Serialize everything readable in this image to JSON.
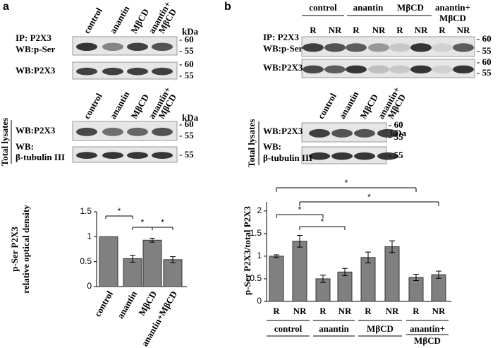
{
  "chart_data": [
    {
      "type": "bar",
      "ylabel": [
        "p-Ser P2X3",
        "relative optical density"
      ],
      "categories": [
        "control",
        "anantin",
        "MβCD",
        "anantin+MβCD"
      ],
      "values": [
        1,
        0.56,
        0.93,
        0.54
      ],
      "errors": [
        0,
        0.07,
        0.04,
        0.06
      ],
      "color": "#808080",
      "ylim": [
        0,
        1.5
      ],
      "yticks": [
        0,
        0.5,
        1,
        1.5
      ],
      "annotations": [
        "*",
        "*",
        "*"
      ]
    },
    {
      "type": "grouped-bar",
      "ylabel": "p-Ser P2X3/total P2X3",
      "categories": [
        "R",
        "NR",
        "R",
        "NR",
        "R",
        "NR",
        "R",
        "NR"
      ],
      "groups": [
        "control",
        "anantin",
        "MβCD",
        [
          "anantin+",
          "MβCD"
        ]
      ],
      "values": [
        1.0,
        1.33,
        0.5,
        0.65,
        0.97,
        1.21,
        0.53,
        0.59
      ],
      "errors": [
        0.03,
        0.13,
        0.08,
        0.08,
        0.12,
        0.13,
        0.07,
        0.08
      ],
      "color": "#808080",
      "ylim": [
        0,
        2.2
      ],
      "yticks": [
        0,
        0.5,
        1,
        1.5,
        2
      ],
      "annotations": [
        "*",
        "*",
        "*",
        "*"
      ]
    }
  ],
  "panel_a": {
    "label": "a",
    "lanes": [
      "control",
      "anantin",
      "MβCD",
      [
        "anantin+",
        "MβCD"
      ]
    ],
    "kda": "kDa",
    "ip_labels": [
      "IP: P2X3",
      "WB:p-Ser"
    ],
    "wb_label": "WB:P2X3",
    "total_lysates": "Total lysates",
    "tubulin_labels": [
      "WB:",
      "β-tubulin III"
    ],
    "markers": [
      "- 60",
      "- 55"
    ]
  },
  "panel_b": {
    "label": "b",
    "lanes": [
      "control",
      "anantin",
      "MβCD",
      [
        "anantin+",
        "MβCD"
      ]
    ],
    "lane_sub": [
      "R",
      "NR"
    ],
    "kda": "kDa",
    "ip_labels": [
      "IP: P2X3",
      "WB:p-Ser"
    ],
    "wb_label": "WB:P2X3",
    "total_lysates": "Total lysates",
    "tubulin_labels": [
      "WB:",
      "β-tubulin III"
    ],
    "markers": [
      "- 60",
      "- 55"
    ]
  }
}
